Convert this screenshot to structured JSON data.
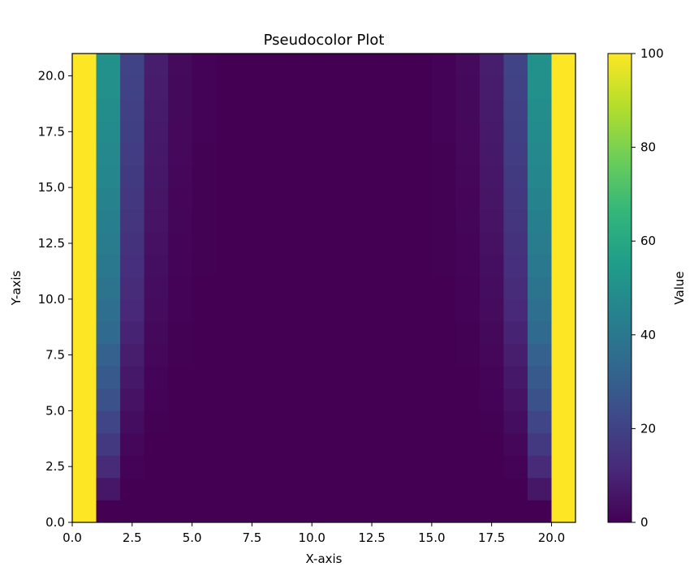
{
  "chart_data": {
    "type": "heatmap",
    "title": "Pseudocolor Plot",
    "xlabel": "X-axis",
    "ylabel": "Y-axis",
    "colorbar_label": "Value",
    "colormap": "viridis",
    "xlim": [
      0,
      21
    ],
    "ylim": [
      0,
      21
    ],
    "clim": [
      0,
      100
    ],
    "x_edges": [
      0,
      1,
      2,
      3,
      4,
      5,
      6,
      7,
      8,
      9,
      10,
      11,
      12,
      13,
      14,
      15,
      16,
      17,
      18,
      19,
      20,
      21
    ],
    "y_edges": [
      0,
      1,
      2,
      3,
      4,
      5,
      6,
      7,
      8,
      9,
      10,
      11,
      12,
      13,
      14,
      15,
      16,
      17,
      18,
      19,
      20,
      21
    ],
    "x_ticks": [
      0.0,
      2.5,
      5.0,
      7.5,
      10.0,
      12.5,
      15.0,
      17.5,
      20.0
    ],
    "x_tick_labels": [
      "0.0",
      "2.5",
      "5.0",
      "7.5",
      "10.0",
      "12.5",
      "15.0",
      "17.5",
      "20.0"
    ],
    "y_ticks": [
      0.0,
      2.5,
      5.0,
      7.5,
      10.0,
      12.5,
      15.0,
      17.5,
      20.0
    ],
    "y_tick_labels": [
      "0.0",
      "2.5",
      "5.0",
      "7.5",
      "10.0",
      "12.5",
      "15.0",
      "17.5",
      "20.0"
    ],
    "colorbar_ticks": [
      0,
      20,
      40,
      60,
      80,
      100
    ],
    "colorbar_tick_labels": [
      "0",
      "20",
      "40",
      "60",
      "80",
      "100"
    ],
    "values": [
      [
        100,
        0,
        0,
        0,
        0,
        0,
        0,
        0,
        0,
        0,
        0,
        0,
        0,
        0,
        0,
        0,
        0,
        0,
        0,
        0,
        100
      ],
      [
        100,
        6,
        0,
        0,
        0,
        0,
        0,
        0,
        0,
        0,
        0,
        0,
        0,
        0,
        0,
        0,
        0,
        0,
        0,
        6,
        100
      ],
      [
        100,
        12,
        0.6,
        0,
        0,
        0,
        0,
        0,
        0,
        0,
        0,
        0,
        0,
        0,
        0,
        0,
        0,
        0,
        0.6,
        12,
        100
      ],
      [
        100,
        17,
        1.7,
        0.1,
        0,
        0,
        0,
        0,
        0,
        0,
        0,
        0,
        0,
        0,
        0,
        0,
        0,
        0.1,
        1.7,
        17,
        100
      ],
      [
        100,
        21,
        3.3,
        0.3,
        0,
        0,
        0,
        0,
        0,
        0,
        0,
        0,
        0,
        0,
        0,
        0,
        0,
        0.3,
        3.3,
        21,
        100
      ],
      [
        100,
        25,
        4.9,
        0.6,
        0.1,
        0,
        0,
        0,
        0,
        0,
        0,
        0,
        0,
        0,
        0,
        0,
        0.1,
        0.6,
        4.9,
        25,
        100
      ],
      [
        100,
        28,
        6.5,
        1.1,
        0.1,
        0,
        0,
        0,
        0,
        0,
        0,
        0,
        0,
        0,
        0,
        0,
        0.1,
        1.1,
        6.5,
        28,
        100
      ],
      [
        100,
        31,
        8.1,
        1.6,
        0.2,
        0,
        0,
        0,
        0,
        0,
        0,
        0,
        0,
        0,
        0,
        0,
        0.2,
        1.6,
        8.1,
        31,
        100
      ],
      [
        100,
        34,
        9.6,
        2.2,
        0.4,
        0.1,
        0,
        0,
        0,
        0,
        0,
        0,
        0,
        0,
        0,
        0.1,
        0.4,
        2.2,
        9.6,
        34,
        100
      ],
      [
        100,
        36,
        11,
        2.8,
        0.5,
        0.1,
        0,
        0,
        0,
        0,
        0,
        0,
        0,
        0,
        0,
        0.1,
        0.5,
        2.8,
        11,
        36,
        100
      ],
      [
        100,
        38,
        12.3,
        3.4,
        0.7,
        0.1,
        0,
        0,
        0,
        0,
        0,
        0,
        0,
        0,
        0,
        0.1,
        0.7,
        3.4,
        12.3,
        38,
        100
      ],
      [
        100,
        40,
        13.5,
        4,
        0.9,
        0.2,
        0,
        0,
        0,
        0,
        0,
        0,
        0,
        0,
        0,
        0.2,
        0.9,
        4,
        13.5,
        40,
        100
      ],
      [
        100,
        42,
        14.6,
        4.6,
        1.1,
        0.2,
        0,
        0,
        0,
        0,
        0,
        0,
        0,
        0,
        0,
        0.2,
        1.1,
        4.6,
        14.6,
        42,
        100
      ],
      [
        100,
        43,
        15.6,
        5.1,
        1.3,
        0.3,
        0.1,
        0,
        0,
        0,
        0,
        0,
        0,
        0,
        0.1,
        0.3,
        1.3,
        5.1,
        15.6,
        43,
        100
      ],
      [
        100,
        45,
        16.5,
        5.6,
        1.5,
        0.3,
        0.1,
        0,
        0,
        0,
        0,
        0,
        0,
        0,
        0.1,
        0.3,
        1.5,
        5.6,
        16.5,
        45,
        100
      ],
      [
        100,
        46,
        17.3,
        6.1,
        1.7,
        0.4,
        0.1,
        0,
        0,
        0,
        0,
        0,
        0,
        0,
        0.1,
        0.4,
        1.7,
        6.1,
        17.3,
        46,
        100
      ],
      [
        100,
        47,
        18,
        6.5,
        1.9,
        0.4,
        0.1,
        0,
        0,
        0,
        0,
        0,
        0,
        0,
        0.1,
        0.4,
        1.9,
        6.5,
        18,
        47,
        100
      ],
      [
        100,
        48,
        18.7,
        6.9,
        2.1,
        0.5,
        0.1,
        0,
        0,
        0,
        0,
        0,
        0,
        0,
        0.1,
        0.5,
        2.1,
        6.9,
        18.7,
        48,
        100
      ],
      [
        100,
        49,
        19.3,
        7.3,
        2.3,
        0.5,
        0.1,
        0,
        0,
        0,
        0,
        0,
        0,
        0,
        0.1,
        0.5,
        2.3,
        7.3,
        19.3,
        49,
        100
      ],
      [
        100,
        50,
        19.8,
        7.6,
        2.4,
        0.6,
        0.1,
        0,
        0,
        0,
        0,
        0,
        0,
        0,
        0.1,
        0.6,
        2.4,
        7.6,
        19.8,
        50,
        100
      ],
      [
        100,
        50.5,
        20.2,
        7.9,
        2.6,
        0.6,
        0.1,
        0,
        0,
        0,
        0,
        0,
        0,
        0,
        0.1,
        0.6,
        2.6,
        7.9,
        20.2,
        50.5,
        100
      ]
    ]
  }
}
